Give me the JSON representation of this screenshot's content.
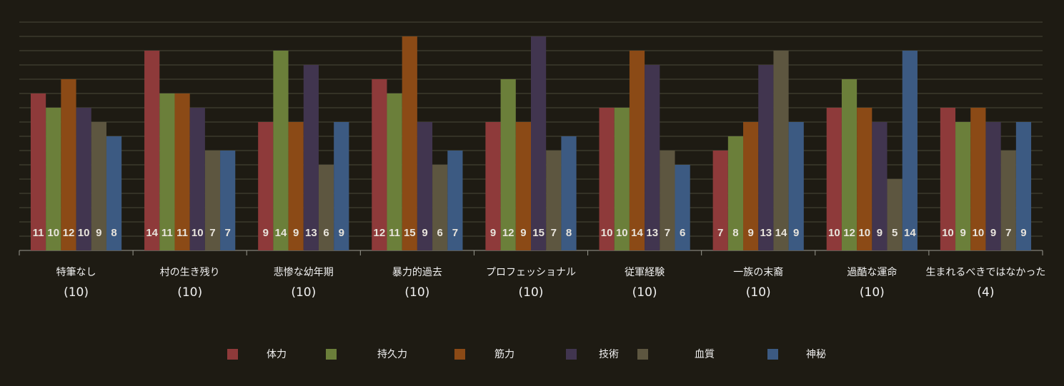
{
  "chart_data": {
    "type": "bar",
    "categories": [
      "特筆なし",
      "村の生き残り",
      "悲惨な幼年期",
      "暴力的過去",
      "プロフェッショナル",
      "従軍経験",
      "一族の末裔",
      "過酷な運命",
      "生まれるべきではなかった"
    ],
    "category_sublabels": [
      "(10)",
      "(10)",
      "(10)",
      "(10)",
      "(10)",
      "(10)",
      "(10)",
      "(10)",
      "(4)"
    ],
    "series": [
      {
        "name": "体力",
        "color": "#8e3a3a",
        "values": [
          11,
          14,
          9,
          12,
          9,
          10,
          7,
          10,
          10
        ]
      },
      {
        "name": "持久力",
        "color": "#6b7f3a",
        "values": [
          10,
          11,
          14,
          11,
          12,
          10,
          8,
          12,
          9
        ]
      },
      {
        "name": "筋力",
        "color": "#8b4a16",
        "values": [
          12,
          11,
          9,
          15,
          9,
          14,
          9,
          10,
          10
        ]
      },
      {
        "name": "技術",
        "color": "#41354f",
        "values": [
          10,
          10,
          13,
          9,
          15,
          13,
          13,
          9,
          9
        ]
      },
      {
        "name": "血質",
        "color": "#5d5640",
        "values": [
          9,
          7,
          6,
          6,
          7,
          7,
          14,
          5,
          7
        ]
      },
      {
        "name": "神秘",
        "color": "#3c5a82",
        "values": [
          8,
          7,
          9,
          7,
          8,
          6,
          9,
          14,
          9
        ]
      }
    ],
    "ylim": [
      0,
      16
    ],
    "yticks": [
      0,
      1,
      2,
      3,
      4,
      5,
      6,
      7,
      8,
      9,
      10,
      11,
      12,
      13,
      14,
      15,
      16
    ],
    "grid": true
  }
}
